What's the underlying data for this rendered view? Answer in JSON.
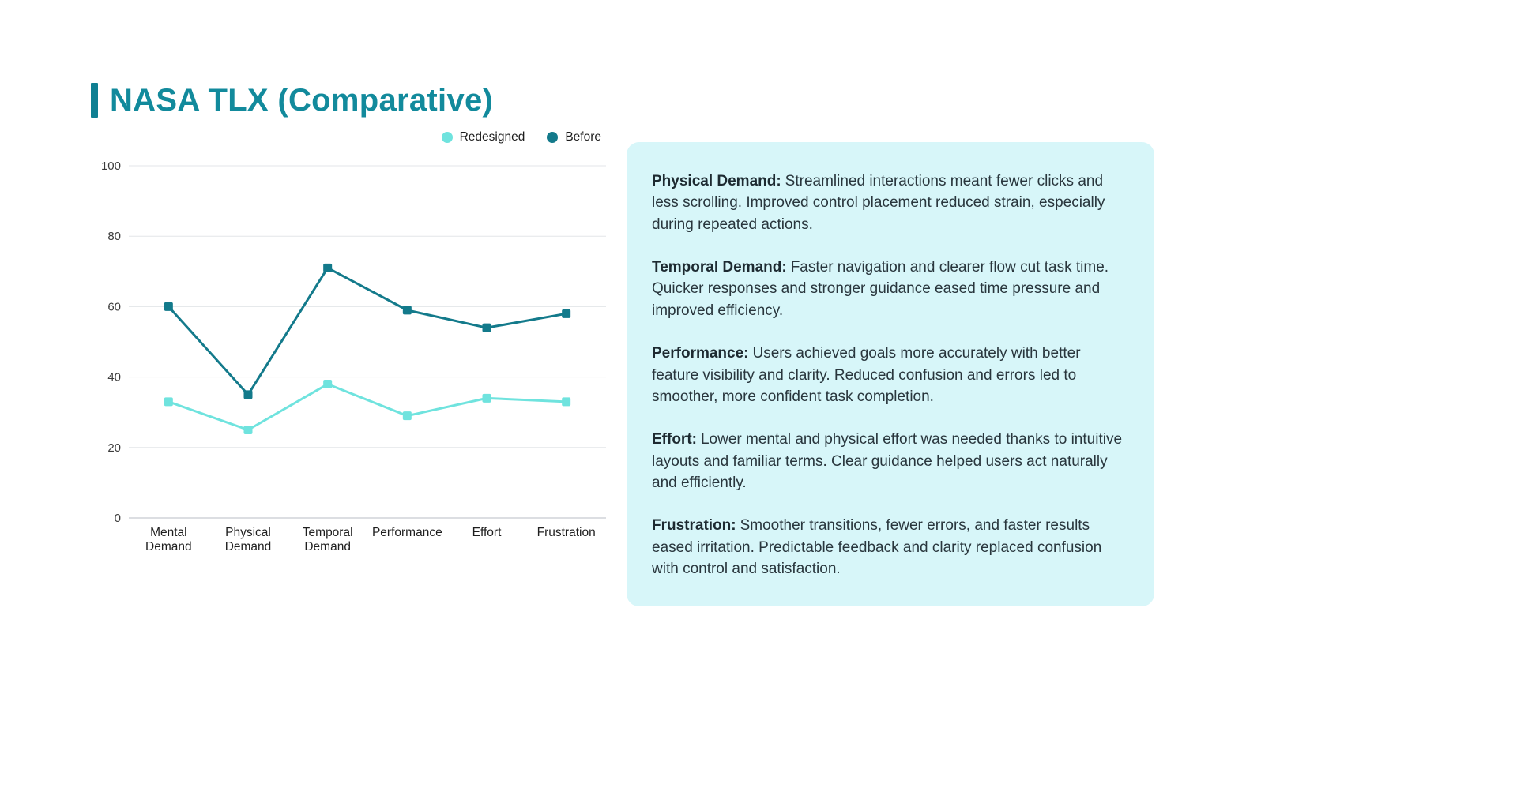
{
  "title": "NASA TLX (Comparative)",
  "colors": {
    "title": "#128a9c",
    "accent_bar": "#0f7f92",
    "panel_bg": "#d7f6f9",
    "grid": "#e3e6e8",
    "axis": "#b9bec4",
    "series_redesigned": "#6fe3de",
    "series_before": "#137a8b"
  },
  "chart_data": {
    "type": "line",
    "title": "NASA TLX (Comparative)",
    "categories": [
      "Mental Demand",
      "Physical Demand",
      "Temporal Demand",
      "Performance",
      "Effort",
      "Frustration"
    ],
    "series": [
      {
        "name": "Redesigned",
        "color": "#6fe3de",
        "values": [
          33,
          25,
          38,
          29,
          34,
          33
        ]
      },
      {
        "name": "Before",
        "color": "#137a8b",
        "values": [
          60,
          35,
          71,
          59,
          54,
          58
        ]
      }
    ],
    "ylim": [
      0,
      100
    ],
    "yticks": [
      0,
      20,
      40,
      60,
      80,
      100
    ],
    "xlabel": "",
    "ylabel": "",
    "grid": "horizontal",
    "legend_position": "top-right",
    "marker": "square"
  },
  "annotations": [
    {
      "label": "Physical Demand:",
      "text": "Streamlined interactions meant fewer clicks and less scrolling. Improved control placement reduced strain, especially during repeated actions."
    },
    {
      "label": "Temporal Demand:",
      "text": "Faster navigation and clearer flow cut task time. Quicker responses and stronger guidance eased time pressure and improved efficiency."
    },
    {
      "label": "Performance:",
      "text": "Users achieved goals more accurately with better feature visibility and clarity. Reduced confusion and errors led to smoother, more confident task completion."
    },
    {
      "label": "Effort:",
      "text": "Lower mental and physical effort was needed thanks to intuitive layouts and familiar terms. Clear guidance helped users act naturally and efficiently."
    },
    {
      "label": "Frustration:",
      "text": "Smoother transitions, fewer errors, and faster results eased irritation. Predictable feedback and clarity replaced confusion with control and satisfaction."
    }
  ]
}
